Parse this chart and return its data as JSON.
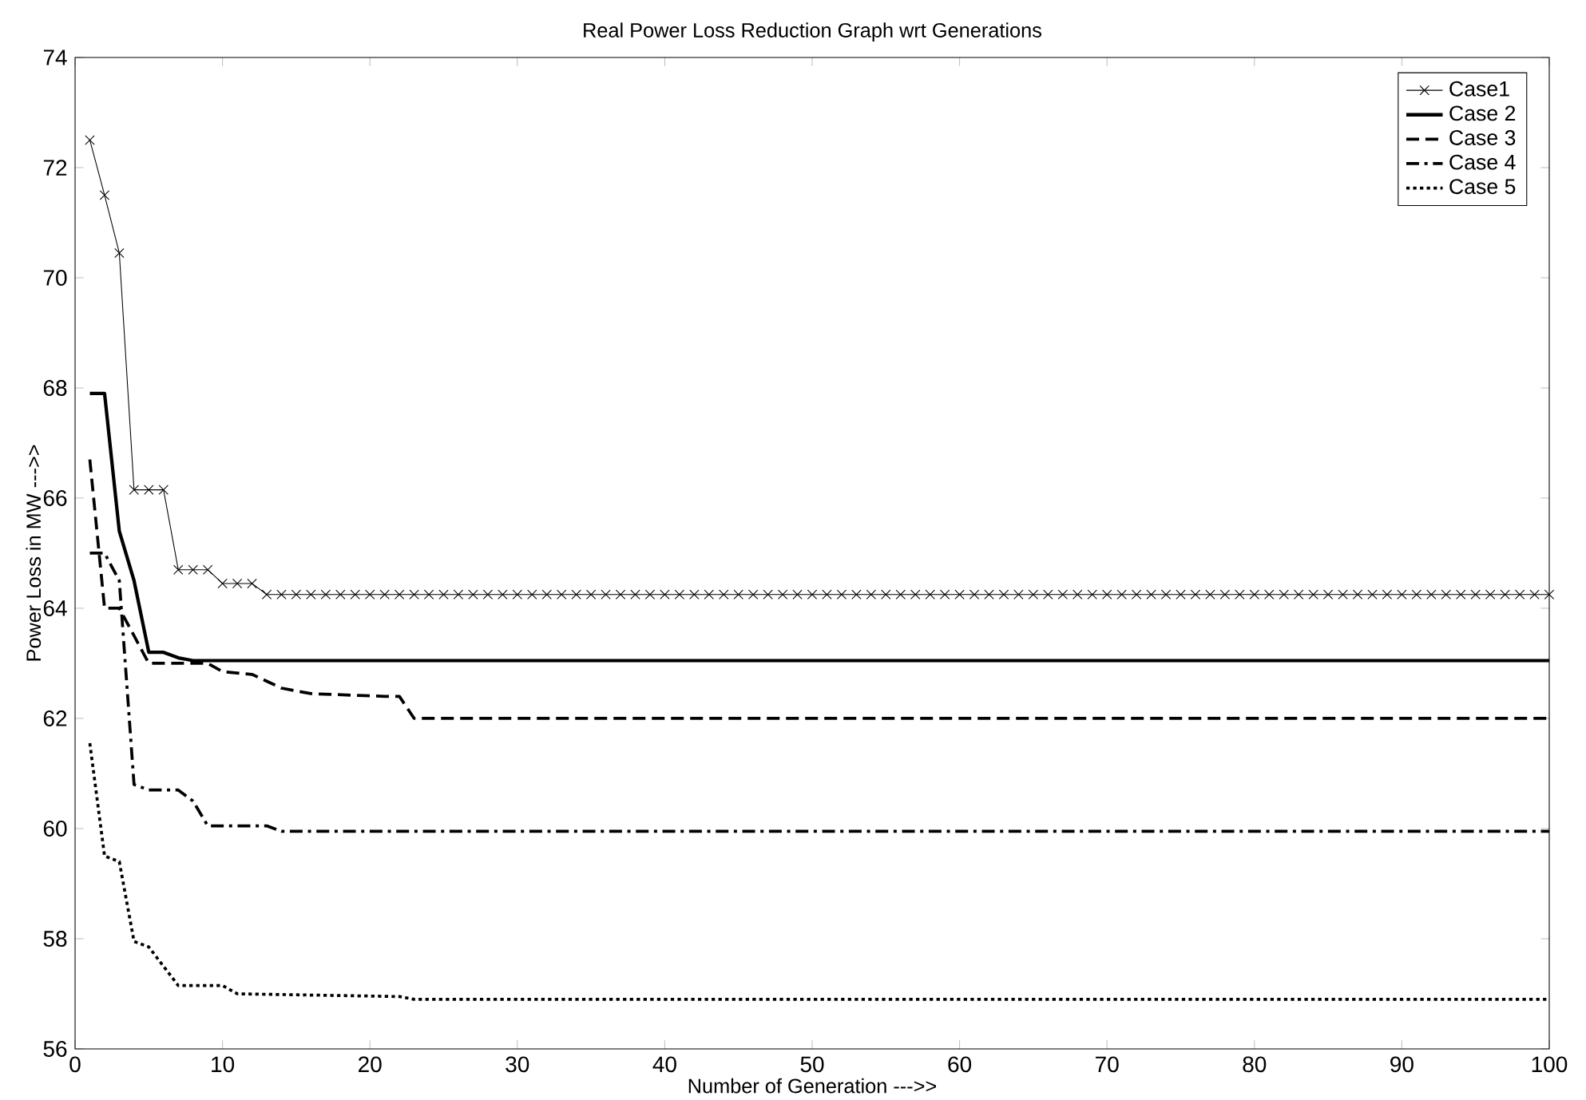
{
  "chart_data": {
    "type": "line",
    "title": "Real Power Loss Reduction Graph wrt Generations",
    "xlabel": "Number of Generation --->>",
    "ylabel": "Power Loss in MW --->>",
    "xlim": [
      0,
      100
    ],
    "ylim": [
      56,
      74
    ],
    "xticks": [
      0,
      10,
      20,
      30,
      40,
      50,
      60,
      70,
      80,
      90,
      100
    ],
    "yticks": [
      56,
      58,
      60,
      62,
      64,
      66,
      68,
      70,
      72,
      74
    ],
    "grid": false,
    "legend": "top right",
    "series": [
      {
        "name": "Case1",
        "color": "#000000",
        "marker": "cross",
        "line_style": "solid",
        "x": [
          1,
          2,
          3,
          4,
          5,
          6,
          7,
          8,
          9,
          10,
          11,
          12,
          13,
          14,
          15,
          16,
          17,
          18,
          19,
          20,
          21,
          22,
          23,
          24,
          25,
          26,
          27,
          28,
          29,
          30,
          31,
          32,
          33,
          34,
          35,
          36,
          37,
          38,
          39,
          40,
          41,
          42,
          43,
          44,
          45,
          46,
          47,
          48,
          49,
          50,
          51,
          52,
          53,
          54,
          55,
          56,
          57,
          58,
          59,
          60,
          61,
          62,
          63,
          64,
          65,
          66,
          67,
          68,
          69,
          70,
          71,
          72,
          73,
          74,
          75,
          76,
          77,
          78,
          79,
          80,
          81,
          82,
          83,
          84,
          85,
          86,
          87,
          88,
          89,
          90,
          91,
          92,
          93,
          94,
          95,
          96,
          97,
          98,
          99,
          100
        ],
        "values": [
          72.5,
          71.5,
          70.45,
          66.15,
          66.15,
          66.15,
          64.7,
          64.7,
          64.7,
          64.45,
          64.45,
          64.45,
          64.25,
          64.25,
          64.25,
          64.25,
          64.25,
          64.25,
          64.25,
          64.25,
          64.25,
          64.25,
          64.25,
          64.25,
          64.25,
          64.25,
          64.25,
          64.25,
          64.25,
          64.25,
          64.25,
          64.25,
          64.25,
          64.25,
          64.25,
          64.25,
          64.25,
          64.25,
          64.25,
          64.25,
          64.25,
          64.25,
          64.25,
          64.25,
          64.25,
          64.25,
          64.25,
          64.25,
          64.25,
          64.25,
          64.25,
          64.25,
          64.25,
          64.25,
          64.25,
          64.25,
          64.25,
          64.25,
          64.25,
          64.25,
          64.25,
          64.25,
          64.25,
          64.25,
          64.25,
          64.25,
          64.25,
          64.25,
          64.25,
          64.25,
          64.25,
          64.25,
          64.25,
          64.25,
          64.25,
          64.25,
          64.25,
          64.25,
          64.25,
          64.25,
          64.25,
          64.25,
          64.25,
          64.25,
          64.25,
          64.25,
          64.25,
          64.25,
          64.25,
          64.25,
          64.25,
          64.25,
          64.25,
          64.25,
          64.25,
          64.25,
          64.25,
          64.25,
          64.25,
          64.25
        ]
      },
      {
        "name": "Case 2",
        "color": "#000000",
        "marker": "none",
        "line_style": "solid",
        "x": [
          1,
          2,
          3,
          4,
          5,
          6,
          7,
          8,
          100
        ],
        "values": [
          67.9,
          67.9,
          65.4,
          64.5,
          63.2,
          63.2,
          63.1,
          63.05,
          63.05
        ]
      },
      {
        "name": "Case 3",
        "color": "#000000",
        "marker": "none",
        "line_style": "dashed",
        "x": [
          1,
          2,
          3,
          4,
          5,
          8,
          9,
          10,
          12,
          14,
          16,
          21,
          22,
          23,
          100
        ],
        "values": [
          66.7,
          64,
          64,
          63.5,
          63,
          63,
          63,
          62.85,
          62.8,
          62.55,
          62.45,
          62.4,
          62.4,
          62,
          62
        ]
      },
      {
        "name": "Case 4",
        "color": "#000000",
        "marker": "none",
        "line_style": "dashdot",
        "x": [
          1,
          2,
          3,
          4,
          5,
          7,
          8,
          9,
          13,
          14,
          100
        ],
        "values": [
          65,
          65,
          64.5,
          60.8,
          60.7,
          60.7,
          60.5,
          60.05,
          60.05,
          59.95,
          59.95
        ]
      },
      {
        "name": "Case 5",
        "color": "#000000",
        "marker": "none",
        "line_style": "dotted",
        "x": [
          1,
          2,
          3,
          4,
          5,
          7,
          10,
          11,
          22,
          23,
          100
        ],
        "values": [
          61.55,
          59.5,
          59.4,
          57.95,
          57.85,
          57.15,
          57.15,
          57,
          56.95,
          56.9,
          56.9
        ]
      }
    ]
  }
}
